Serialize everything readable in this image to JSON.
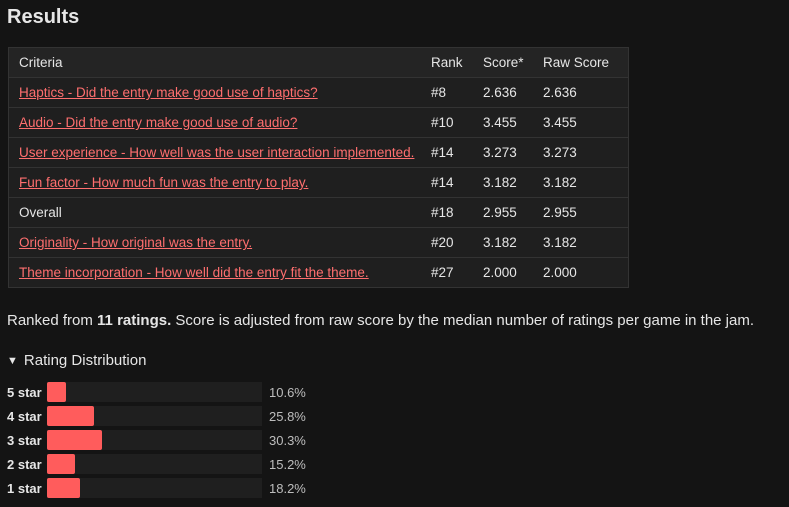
{
  "header": {
    "title": "Results"
  },
  "table": {
    "columns": [
      "Criteria",
      "Rank",
      "Score*",
      "Raw Score"
    ],
    "rows": [
      {
        "criteria": "Haptics - Did the entry make good use of haptics?",
        "link": true,
        "rank": "#8",
        "score": "2.636",
        "raw": "2.636"
      },
      {
        "criteria": "Audio - Did the entry make good use of audio?",
        "link": true,
        "rank": "#10",
        "score": "3.455",
        "raw": "3.455"
      },
      {
        "criteria": "User experience - How well was the user interaction implemented.",
        "link": true,
        "rank": "#14",
        "score": "3.273",
        "raw": "3.273"
      },
      {
        "criteria": "Fun factor - How much fun was the entry to play.",
        "link": true,
        "rank": "#14",
        "score": "3.182",
        "raw": "3.182"
      },
      {
        "criteria": "Overall",
        "link": false,
        "rank": "#18",
        "score": "2.955",
        "raw": "2.955"
      },
      {
        "criteria": "Originality - How original was the entry.",
        "link": true,
        "rank": "#20",
        "score": "3.182",
        "raw": "3.182"
      },
      {
        "criteria": "Theme incorporation - How well did the entry fit the theme.",
        "link": true,
        "rank": "#27",
        "score": "2.000",
        "raw": "2.000"
      }
    ]
  },
  "summary": {
    "prefix": "Ranked from ",
    "bold": "11 ratings.",
    "suffix": " Score is adjusted from raw score by the median number of ratings per game in the jam."
  },
  "distribution": {
    "toggle_label": "Rating Distribution",
    "toggle_icon": "triangle-down-icon",
    "rows": [
      {
        "label": "5 star",
        "percent_text": "10.6%",
        "value": 10.6
      },
      {
        "label": "4 star",
        "percent_text": "25.8%",
        "value": 25.8
      },
      {
        "label": "3 star",
        "percent_text": "30.3%",
        "value": 30.3
      },
      {
        "label": "2 star",
        "percent_text": "15.2%",
        "value": 15.2
      },
      {
        "label": "1 star",
        "percent_text": "18.2%",
        "value": 18.2
      }
    ]
  },
  "colors": {
    "accent": "#ff5c5c",
    "link": "#ff6f6f",
    "background": "#141414",
    "panel": "#1f1f1f"
  }
}
